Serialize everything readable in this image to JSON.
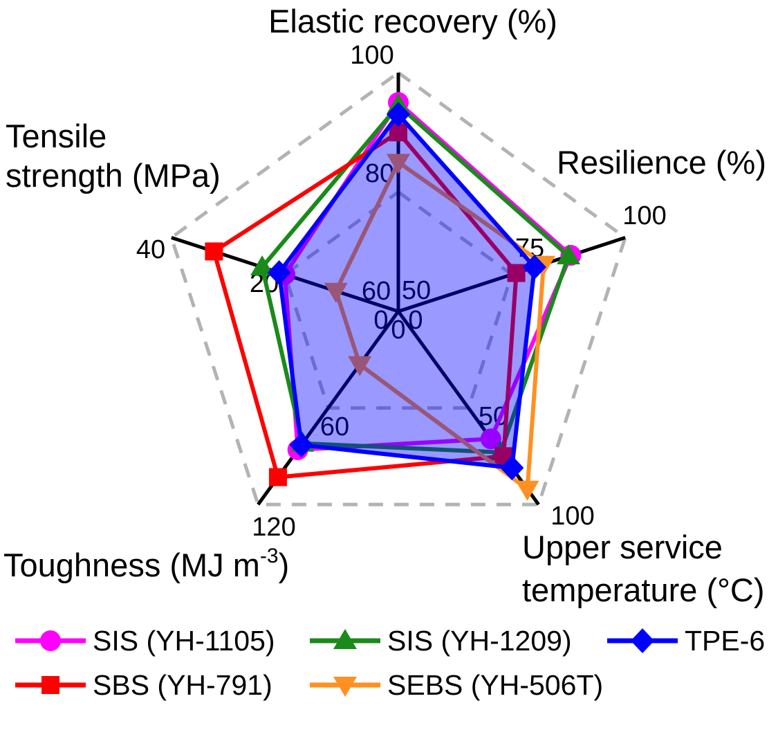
{
  "figure": {
    "background": "#ffffff",
    "description": "Radar (spider) chart comparing five thermoplastic elastomers across five mechanical properties"
  },
  "chart_data": {
    "type": "radar",
    "axes": [
      {
        "id": "elastic-recovery",
        "title": "Elastic recovery (%)",
        "min": 60,
        "max": 100,
        "ticks": [
          "100",
          "80",
          "60"
        ]
      },
      {
        "id": "resilience",
        "title": "Resilience (%)",
        "min": 50,
        "max": 100,
        "ticks": [
          "100",
          "75",
          "50"
        ]
      },
      {
        "id": "upper-service-temperature",
        "title_lines": [
          "Upper service",
          "temperature (°C)"
        ],
        "min": 0,
        "max": 100,
        "ticks": [
          "100",
          "50",
          "0"
        ]
      },
      {
        "id": "toughness",
        "title_main": "Toughness (MJ m",
        "title_sup": "-3",
        "title_end": ")",
        "min": 0,
        "max": 120,
        "ticks": [
          "120",
          "60",
          "0"
        ]
      },
      {
        "id": "tensile-strength",
        "title_lines": [
          "Tensile",
          "strength (MPa)"
        ],
        "min": 0,
        "max": 40,
        "ticks": [
          "40",
          "20",
          "0"
        ]
      }
    ],
    "axis_value_order": [
      "elastic-recovery",
      "resilience",
      "upper-service-temperature",
      "toughness",
      "tensile-strength"
    ],
    "series": [
      {
        "name": "SIS (YH-1105)",
        "color": "#ff00ff",
        "marker": "circle",
        "values": [
          95,
          88,
          66,
          86,
          20
        ]
      },
      {
        "name": "SIS (YH-1209)",
        "color": "#1a8a1a",
        "marker": "triangle-up",
        "values": [
          94.5,
          87.5,
          73,
          82,
          24
        ]
      },
      {
        "name": "TPE-6",
        "color": "#0000ff",
        "marker": "diamond",
        "fill": true,
        "fill_opacity": 0.4,
        "values": [
          93,
          80,
          81,
          83,
          21
        ]
      },
      {
        "name": "SBS (YH-791)",
        "color": "#ff0000",
        "marker": "square",
        "values": [
          90,
          76,
          75,
          103,
          32.5
        ]
      },
      {
        "name": "SEBS (YH-506T)",
        "color": "#ff9021",
        "marker": "triangle-down",
        "values": [
          85,
          82,
          92,
          33,
          11
        ]
      }
    ],
    "grid": {
      "color": "#b3b3b3",
      "style": "dashed",
      "levels": [
        1,
        0.5
      ]
    },
    "axis_color": "#000000",
    "tick_label_color": "#000000",
    "legend_position": "bottom"
  },
  "legend": {
    "rows": [
      [
        "SIS (YH-1105)",
        "SIS (YH-1209)",
        "TPE-6"
      ],
      [
        "SBS (YH-791)",
        "SEBS (YH-506T)"
      ]
    ]
  }
}
